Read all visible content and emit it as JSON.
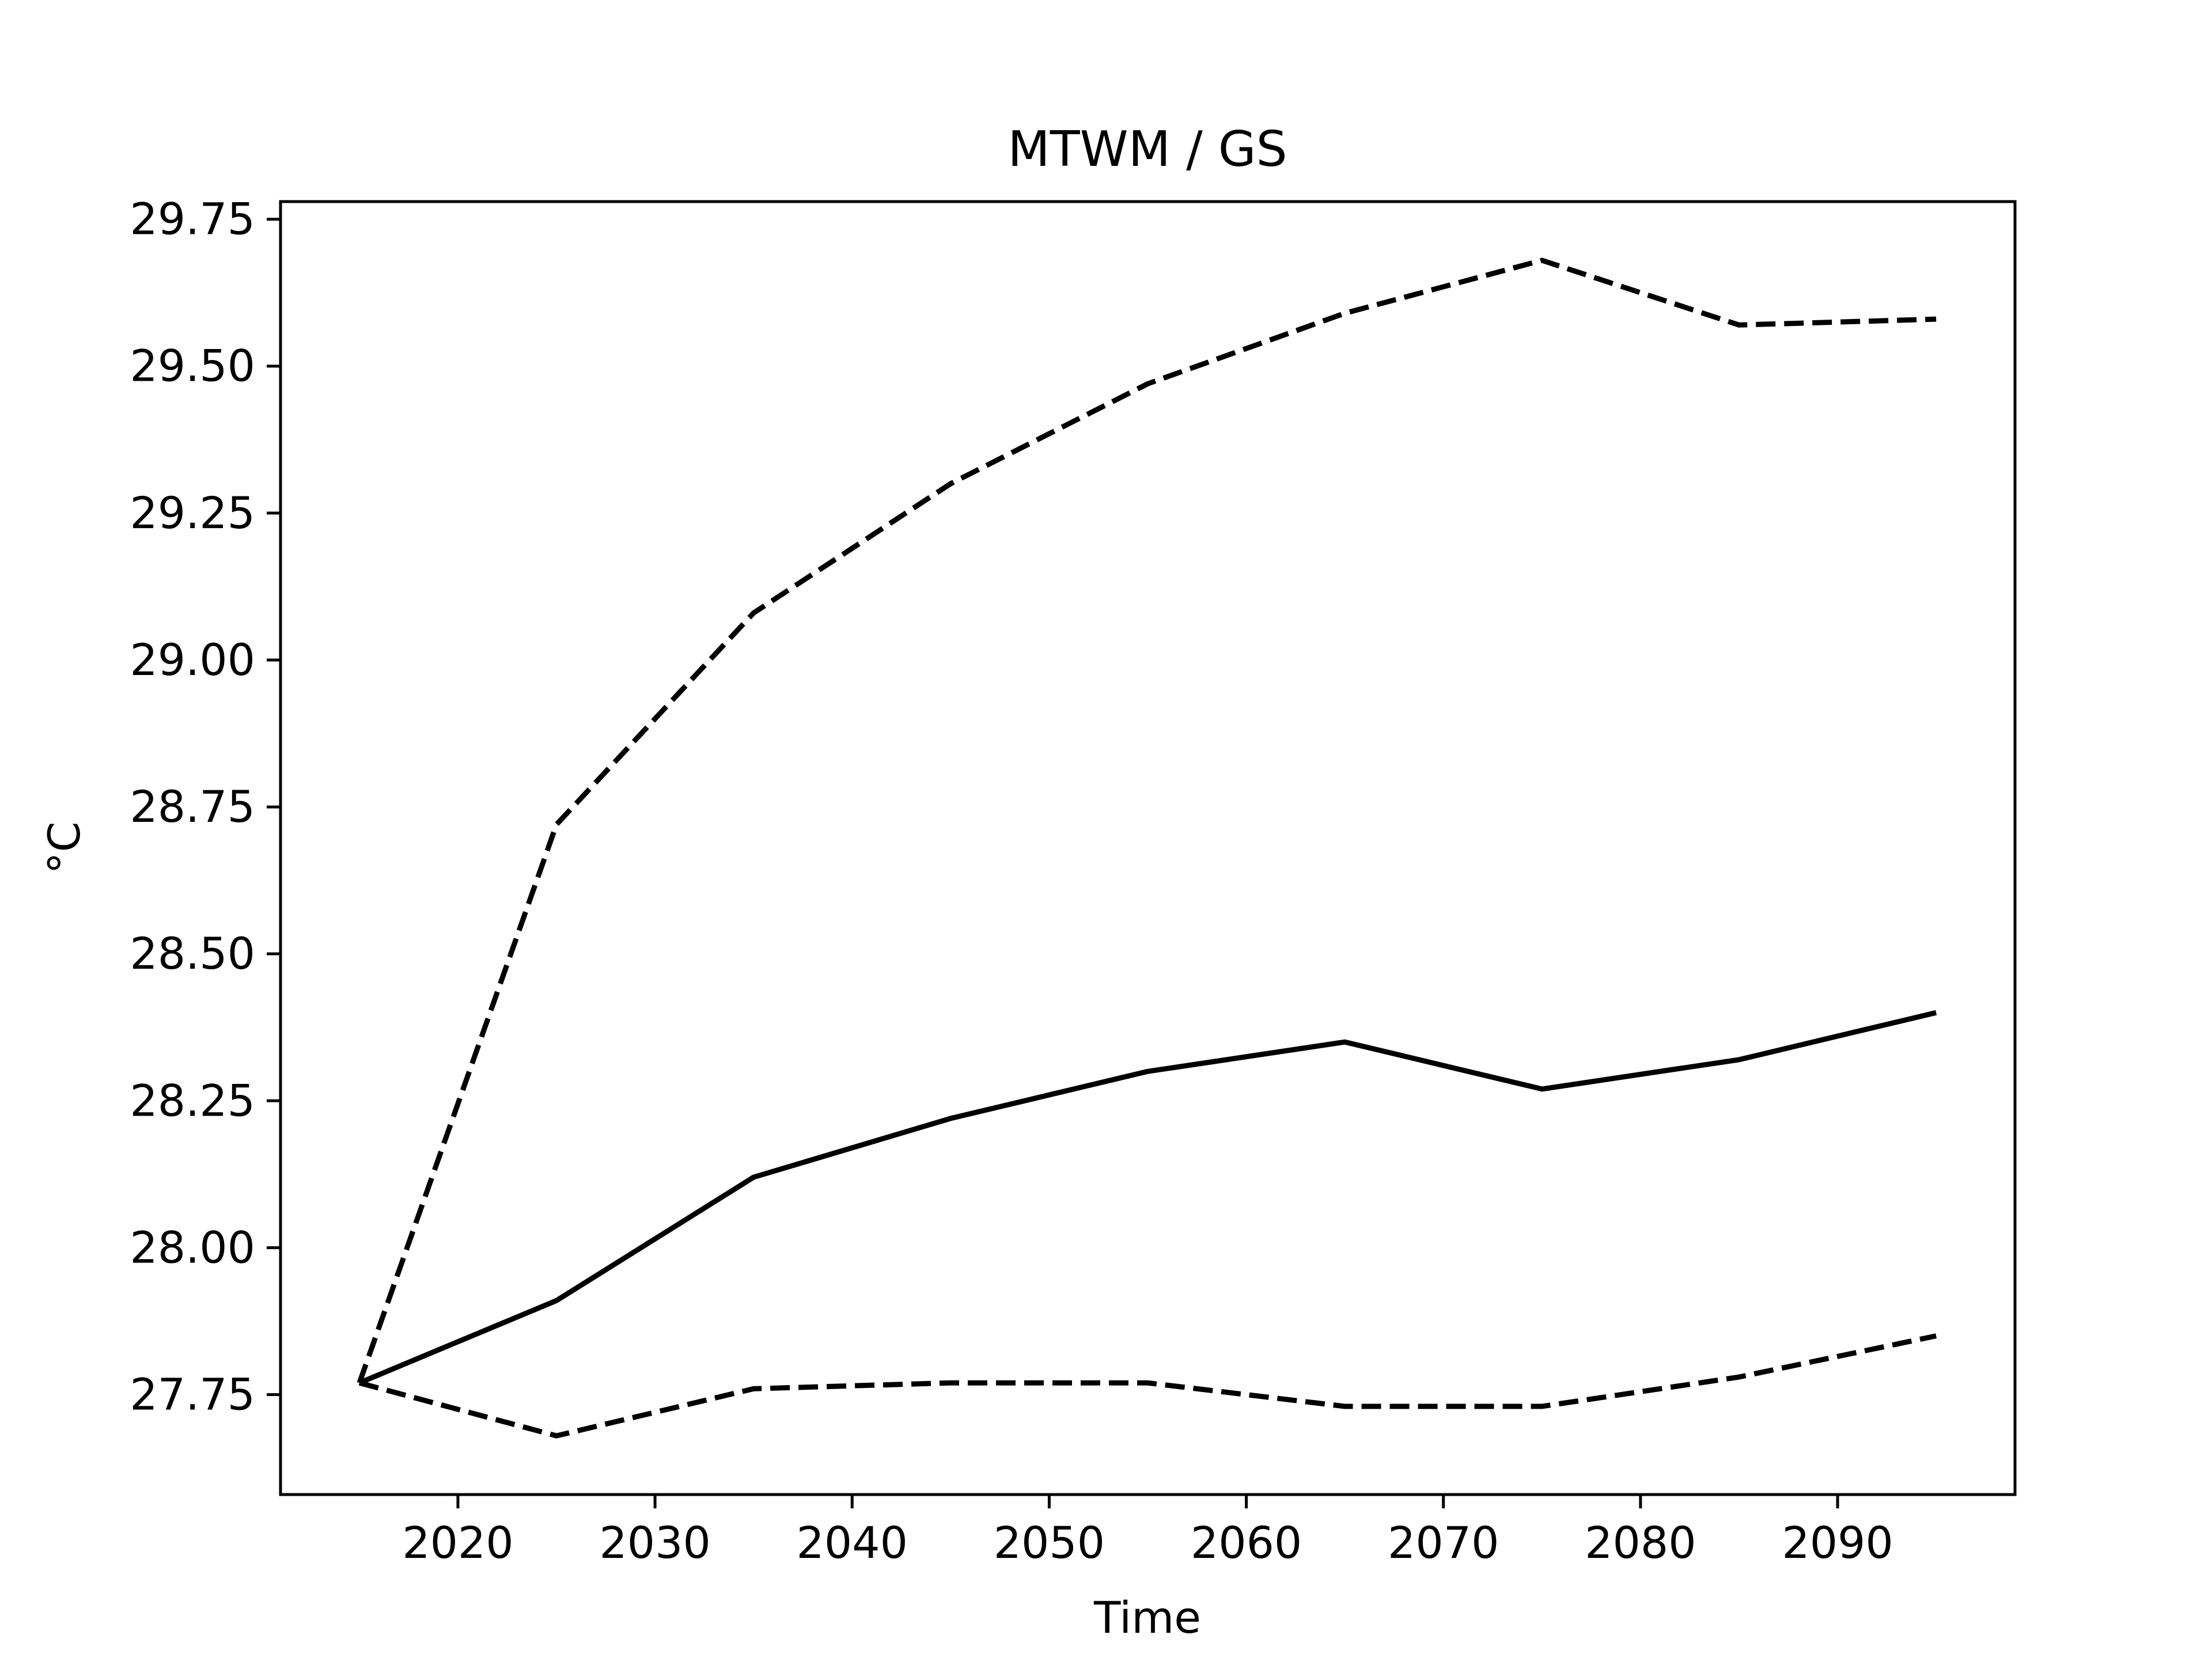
{
  "chart_data": {
    "type": "line",
    "title": "MTWM / GS",
    "xlabel": "Time",
    "ylabel": "°C",
    "xlim": [
      2011,
      2099
    ],
    "ylim": [
      27.58,
      29.78
    ],
    "x_ticks": [
      2020,
      2030,
      2040,
      2050,
      2060,
      2070,
      2080,
      2090
    ],
    "y_ticks": [
      "27.75",
      "28.00",
      "28.25",
      "28.50",
      "28.75",
      "29.00",
      "29.25",
      "29.50",
      "29.75"
    ],
    "grid": false,
    "legend": "none",
    "x": [
      2015,
      2025,
      2035,
      2045,
      2055,
      2065,
      2075,
      2085,
      2095
    ],
    "series": [
      {
        "style": "dashed",
        "color": "#000000",
        "values": [
          27.77,
          28.72,
          29.08,
          29.3,
          29.47,
          29.59,
          29.68,
          29.57,
          29.58
        ]
      },
      {
        "style": "solid",
        "color": "#000000",
        "values": [
          27.77,
          27.91,
          28.12,
          28.22,
          28.3,
          28.35,
          28.27,
          28.32,
          28.4
        ]
      },
      {
        "style": "dashed",
        "color": "#000000",
        "values": [
          27.77,
          27.68,
          27.76,
          27.77,
          27.77,
          27.73,
          27.73,
          27.78,
          27.85
        ]
      }
    ]
  }
}
